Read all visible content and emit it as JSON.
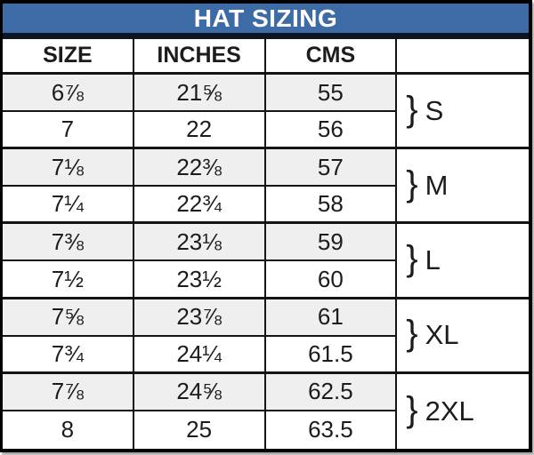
{
  "title": "HAT SIZING",
  "columns": [
    "SIZE",
    "INCHES",
    "CMS"
  ],
  "brace": "}",
  "groups": [
    {
      "label": "S"
    },
    {
      "label": "M"
    },
    {
      "label": "L"
    },
    {
      "label": "XL"
    },
    {
      "label": "2XL"
    }
  ],
  "rows": [
    {
      "size": "6⅞",
      "inches": "21⅝",
      "cms": "55"
    },
    {
      "size": "7",
      "inches": "22",
      "cms": "56"
    },
    {
      "size": "7⅛",
      "inches": "22⅜",
      "cms": "57"
    },
    {
      "size": "7¼",
      "inches": "22¾",
      "cms": "58"
    },
    {
      "size": "7⅜",
      "inches": "23⅛",
      "cms": "59"
    },
    {
      "size": "7½",
      "inches": "23½",
      "cms": "60"
    },
    {
      "size": "7⅝",
      "inches": "23⅞",
      "cms": "61"
    },
    {
      "size": "7¾",
      "inches": "24¼",
      "cms": "61.5"
    },
    {
      "size": "7⅞",
      "inches": "24⅝",
      "cms": "62.5"
    },
    {
      "size": "8",
      "inches": "25",
      "cms": "63.5"
    }
  ],
  "colors": {
    "header_blue": "#3c6ba6",
    "header_text": "#ffffff",
    "title_underline": "#0e1522",
    "row_shaded": "#efefef",
    "border": "#141414",
    "text": "#1c1c1c"
  }
}
